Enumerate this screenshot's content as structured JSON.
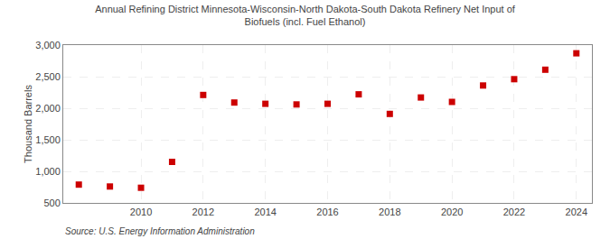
{
  "chart_data": {
    "type": "scatter",
    "title": "Annual Refining District Minnesota-Wisconsin-North Dakota-South Dakota Refinery Net Input of\nBiofuels (incl. Fuel Ethanol)",
    "ylabel": "Thousand Barrels",
    "annotations": [
      "Source: U.S. Energy Information Administration"
    ],
    "x": [
      2008,
      2009,
      2010,
      2011,
      2012,
      2013,
      2014,
      2015,
      2016,
      2017,
      2018,
      2019,
      2020,
      2021,
      2022,
      2023,
      2024
    ],
    "values": [
      790,
      760,
      740,
      1150,
      2210,
      2090,
      2070,
      2060,
      2070,
      2220,
      1910,
      2170,
      2100,
      2360,
      2460,
      2610,
      2870
    ],
    "color": "#cc0000",
    "marker": "square",
    "xlim": [
      2007.5,
      2024.5
    ],
    "xticks": [
      2010,
      2012,
      2014,
      2016,
      2018,
      2020,
      2022,
      2024
    ],
    "ylim": [
      500,
      3000
    ],
    "yticks": [
      500,
      {
        "value": 1000,
        "label": "1,000"
      },
      {
        "value": 1500,
        "label": "1,500"
      },
      {
        "value": 2000,
        "label": "2,000"
      },
      {
        "value": 2500,
        "label": "2,500"
      },
      {
        "value": 3000,
        "label": "3,000"
      }
    ],
    "grid": true
  }
}
